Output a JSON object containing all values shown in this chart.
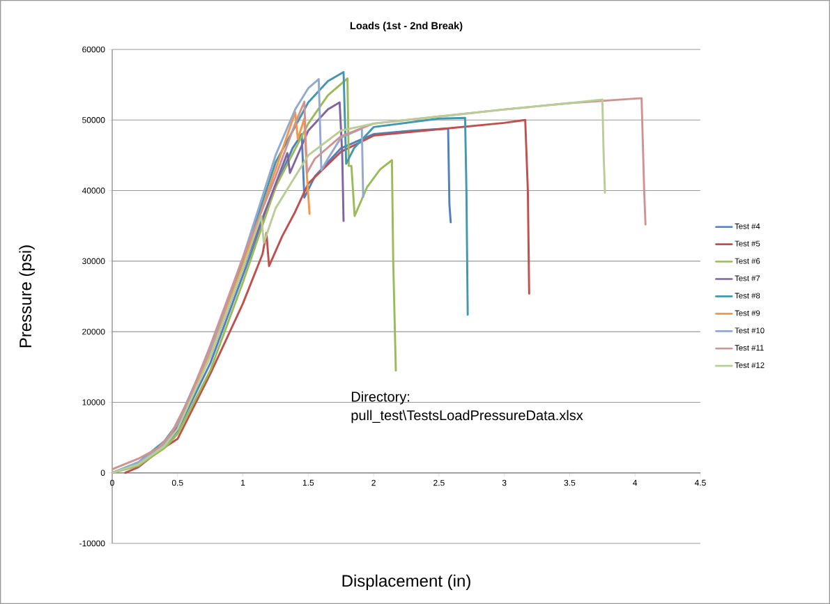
{
  "chart_data": {
    "type": "line",
    "title": "Loads (1st - 2nd Break)",
    "xlabel": "Displacement (in)",
    "ylabel": "Pressure (psi)",
    "xlim": [
      0,
      4.5
    ],
    "ylim": [
      -10000,
      60000
    ],
    "xticks": [
      0,
      0.5,
      1,
      1.5,
      2,
      2.5,
      3,
      3.5,
      4,
      4.5
    ],
    "yticks": [
      -10000,
      0,
      10000,
      20000,
      30000,
      40000,
      50000,
      60000
    ],
    "grid": "y",
    "legend": "right",
    "marker": "none",
    "line_style": "solid",
    "annotations": [
      "Directory:",
      "pull_test\\TestsLoadPressureData.xlsx"
    ],
    "series": [
      {
        "name": "Test #4",
        "color": "#4f81bd",
        "x": [
          0,
          0.2,
          0.4,
          0.5,
          0.75,
          1.0,
          1.25,
          1.38,
          1.45,
          1.47,
          1.55,
          1.75,
          2.0,
          2.3,
          2.57,
          2.58,
          2.59
        ],
        "values": [
          0,
          1200,
          3800,
          6000,
          15500,
          28000,
          40500,
          46000,
          48000,
          39000,
          42000,
          46000,
          48000,
          48500,
          48800,
          38000,
          35500
        ]
      },
      {
        "name": "Test #5",
        "color": "#c0504d",
        "x": [
          0.1,
          0.2,
          0.35,
          0.5,
          0.75,
          1.0,
          1.15,
          1.18,
          1.2,
          1.3,
          1.4,
          1.5,
          1.75,
          2.0,
          2.5,
          3.0,
          3.16,
          3.18,
          3.19
        ],
        "values": [
          0,
          800,
          3000,
          4800,
          14000,
          24000,
          31000,
          34000,
          29300,
          33500,
          37000,
          41000,
          45500,
          47800,
          48700,
          49600,
          50000,
          40000,
          25400
        ]
      },
      {
        "name": "Test #6",
        "color": "#9bbb59",
        "x": [
          0,
          0.2,
          0.4,
          0.5,
          0.75,
          1.0,
          1.25,
          1.5,
          1.65,
          1.8,
          1.81,
          1.83,
          1.855,
          1.95,
          2.05,
          2.14,
          2.15,
          2.17
        ],
        "values": [
          0,
          1000,
          3500,
          5500,
          14500,
          27000,
          40500,
          49500,
          53500,
          55900,
          43500,
          43500,
          36400,
          40500,
          43000,
          44300,
          30000,
          14500
        ]
      },
      {
        "name": "Test #7",
        "color": "#8064a2",
        "x": [
          0,
          0.2,
          0.4,
          0.5,
          0.75,
          1.0,
          1.2,
          1.34,
          1.36,
          1.5,
          1.65,
          1.74,
          1.76,
          1.77
        ],
        "values": [
          0,
          1300,
          4000,
          6500,
          16500,
          29000,
          38500,
          45300,
          42500,
          48500,
          51500,
          52500,
          45000,
          35700
        ]
      },
      {
        "name": "Test #8",
        "color": "#4198af",
        "x": [
          0,
          0.2,
          0.4,
          0.5,
          0.75,
          1.0,
          1.25,
          1.5,
          1.65,
          1.77,
          1.79,
          1.85,
          2.0,
          2.5,
          2.7,
          2.71,
          2.72
        ],
        "values": [
          0,
          1500,
          4500,
          7000,
          17500,
          30000,
          44000,
          52500,
          55500,
          56800,
          43800,
          46000,
          49000,
          50200,
          50300,
          40000,
          22400
        ]
      },
      {
        "name": "Test #9",
        "color": "#f79646",
        "x": [
          0.4,
          0.5,
          0.75,
          1.0,
          1.25,
          1.4,
          1.42,
          1.47,
          1.49,
          1.51
        ],
        "values": [
          4200,
          7000,
          17000,
          29500,
          43000,
          51100,
          47300,
          50200,
          42000,
          36700
        ]
      },
      {
        "name": "Test #10",
        "color": "#93a9cf",
        "x": [
          0,
          0.2,
          0.4,
          0.5,
          0.75,
          1.0,
          1.25,
          1.4,
          1.5,
          1.58,
          1.6,
          1.65,
          1.75,
          1.91,
          1.92
        ],
        "values": [
          0,
          1500,
          4000,
          7000,
          17500,
          30500,
          45000,
          51500,
          54500,
          55800,
          42900,
          44500,
          47500,
          48800,
          39100
        ]
      },
      {
        "name": "Test #11",
        "color": "#d19392",
        "x": [
          0,
          0.2,
          0.35,
          0.45,
          0.6,
          0.75,
          1.0,
          1.25,
          1.4,
          1.47,
          1.49,
          1.55,
          1.75,
          2.0,
          2.5,
          3.0,
          3.5,
          4.05,
          4.07,
          4.08
        ],
        "values": [
          500,
          2000,
          3500,
          5500,
          11000,
          18000,
          30500,
          42000,
          49500,
          52600,
          42500,
          44500,
          47700,
          49500,
          50500,
          51500,
          52400,
          53100,
          40000,
          35200
        ]
      },
      {
        "name": "Test #12",
        "color": "#b9cd96",
        "x": [
          0,
          0.2,
          0.4,
          0.5,
          0.75,
          1.0,
          1.14,
          1.16,
          1.25,
          1.5,
          1.75,
          2.0,
          2.5,
          3.0,
          3.5,
          3.75,
          3.76,
          3.77
        ],
        "values": [
          0,
          1200,
          3800,
          6200,
          16500,
          29000,
          36400,
          32600,
          37500,
          45000,
          48500,
          49500,
          50500,
          51500,
          52400,
          52900,
          45000,
          39700
        ]
      }
    ]
  }
}
